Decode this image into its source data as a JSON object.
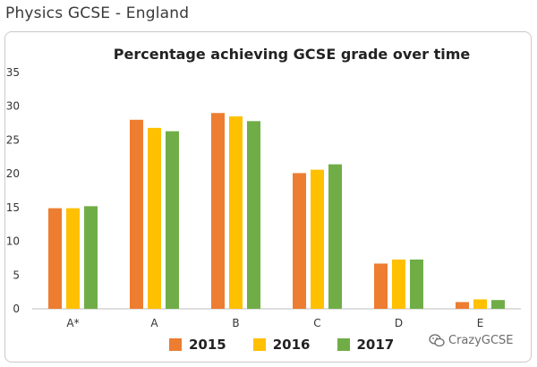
{
  "page": {
    "title": "Physics GCSE - England"
  },
  "watermark": {
    "text": "CrazyGCSE",
    "icon": "wechat-icon"
  },
  "chart_data": {
    "type": "bar",
    "title": "Percentage achieving GCSE grade over time",
    "xlabel": "",
    "ylabel": "",
    "categories": [
      "A*",
      "A",
      "B",
      "C",
      "D",
      "E"
    ],
    "series": [
      {
        "name": "2015",
        "color": "#ED7D31",
        "values": [
          14.9,
          28.0,
          29.0,
          20.1,
          6.7,
          1.0
        ]
      },
      {
        "name": "2016",
        "color": "#FFC000",
        "values": [
          14.9,
          26.8,
          28.5,
          20.6,
          7.3,
          1.4
        ]
      },
      {
        "name": "2017",
        "color": "#70AD47",
        "values": [
          15.2,
          26.3,
          27.8,
          21.4,
          7.3,
          1.3
        ]
      }
    ],
    "ylim": [
      0,
      35
    ],
    "yticks": [
      0,
      5,
      10,
      15,
      20,
      25,
      30,
      35
    ],
    "grid": false,
    "legend_position": "bottom"
  }
}
